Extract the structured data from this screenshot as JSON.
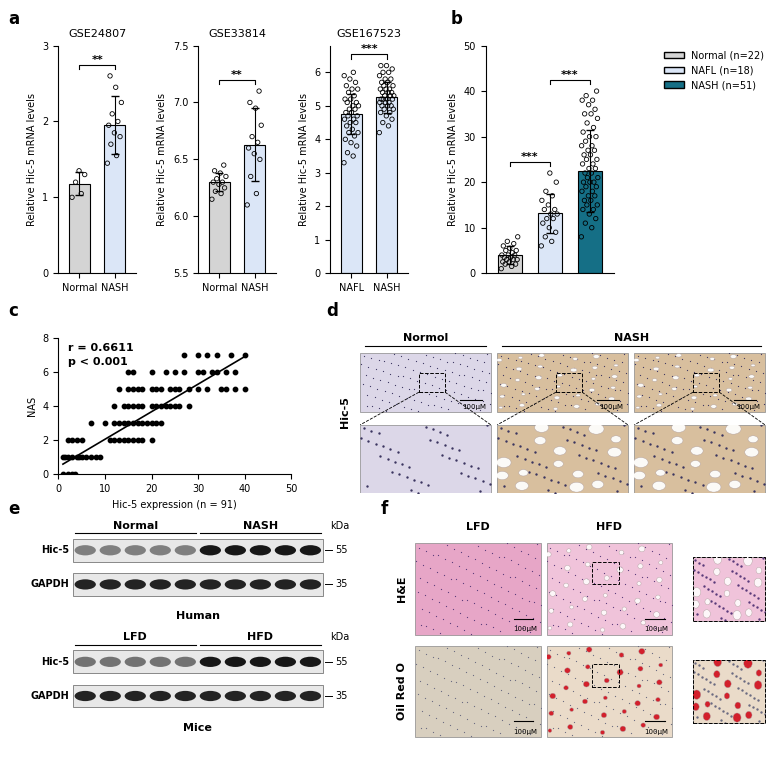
{
  "panel_labels": [
    "a",
    "b",
    "c",
    "d",
    "e",
    "f"
  ],
  "chart_data": [
    {
      "type": "bar",
      "title": "GSE24807",
      "y_label": "Relative Hic-5 mRNA levels",
      "categories": [
        "Normal",
        "NASH"
      ],
      "values": [
        1.18,
        1.95
      ],
      "errors": [
        0.15,
        0.38
      ],
      "points": [
        [
          1.0,
          1.05,
          1.2,
          1.3,
          1.35
        ],
        [
          1.45,
          1.55,
          1.7,
          1.8,
          1.85,
          1.95,
          2.0,
          2.1,
          2.25,
          2.45,
          2.6
        ]
      ],
      "colors": [
        "#d4d4d4",
        "#dbe6f7"
      ],
      "ylim": [
        0,
        3
      ],
      "yticks": [
        0,
        1,
        2,
        3
      ],
      "comparisons": [
        {
          "groups": [
            "Normal",
            "NASH"
          ],
          "label": "**"
        }
      ]
    },
    {
      "type": "bar",
      "title": "GSE33814",
      "y_label": "Relative Hic-5 mRNA levels",
      "categories": [
        "Normal",
        "NASH"
      ],
      "values": [
        6.3,
        6.63
      ],
      "errors": [
        0.08,
        0.32
      ],
      "points": [
        [
          6.15,
          6.2,
          6.22,
          6.25,
          6.28,
          6.3,
          6.3,
          6.33,
          6.35,
          6.38,
          6.4,
          6.45
        ],
        [
          6.1,
          6.2,
          6.35,
          6.5,
          6.55,
          6.6,
          6.65,
          6.7,
          6.8,
          6.95,
          7.0,
          7.1
        ]
      ],
      "colors": [
        "#d4d4d4",
        "#dbe6f7"
      ],
      "ylim": [
        5.5,
        7.5
      ],
      "yticks": [
        5.5,
        {
          "value": 6,
          "label": "6.0"
        },
        6.5,
        {
          "value": 7,
          "label": "7.0"
        },
        7.5
      ],
      "comparisons": [
        {
          "groups": [
            "Normal",
            "NASH"
          ],
          "label": "**"
        }
      ]
    },
    {
      "type": "bar",
      "title": "GSE167523",
      "y_label": "Relative Hic-5 mRNA levels",
      "categories": [
        "NAFL",
        "NASH"
      ],
      "values": [
        4.75,
        5.25
      ],
      "errors": [
        0.6,
        0.45
      ],
      "points": [
        [
          3.3,
          3.5,
          3.6,
          3.8,
          3.9,
          4.0,
          4.1,
          4.2,
          4.2,
          4.3,
          4.4,
          4.5,
          4.5,
          4.6,
          4.6,
          4.7,
          4.7,
          4.8,
          4.8,
          4.9,
          4.9,
          5.0,
          5.0,
          5.1,
          5.1,
          5.2,
          5.2,
          5.3,
          5.4,
          5.5,
          5.5,
          5.6,
          5.7,
          5.8,
          5.9,
          6.0
        ],
        [
          4.2,
          4.4,
          4.5,
          4.6,
          4.7,
          4.8,
          4.8,
          4.9,
          4.9,
          5.0,
          5.0,
          5.0,
          5.1,
          5.1,
          5.1,
          5.2,
          5.2,
          5.2,
          5.2,
          5.3,
          5.3,
          5.3,
          5.4,
          5.4,
          5.4,
          5.5,
          5.5,
          5.5,
          5.6,
          5.6,
          5.7,
          5.7,
          5.8,
          5.8,
          5.9,
          6.0,
          6.0,
          6.1,
          6.2,
          6.2
        ]
      ],
      "colors": [
        "#dbe6f7",
        "#dbe6f7"
      ],
      "ylim": [
        0,
        6.8
      ],
      "yticks": [
        0,
        1,
        2,
        3,
        4,
        5,
        6
      ],
      "comparisons": [
        {
          "groups": [
            "NAFL",
            "NASH"
          ],
          "label": "***"
        }
      ]
    },
    {
      "type": "bar",
      "y_label": "Relative Hic-5 mRNA levels",
      "tick_labels": "y",
      "legend": "upper right",
      "series": [
        {
          "name": "Normal (n=22)",
          "color": "#d4d4d4",
          "values": [
            4.0
          ],
          "errors": [
            2.0
          ],
          "points": [
            1,
            1.5,
            2,
            2,
            2.5,
            2.5,
            3,
            3,
            3,
            3.5,
            3.5,
            4,
            4,
            4,
            4.5,
            5,
            5,
            5.5,
            6,
            6.5,
            7,
            8
          ]
        },
        {
          "name": "NAFL (n=18)",
          "color": "#dbe6f7",
          "values": [
            13.2
          ],
          "errors": [
            4.3
          ],
          "points": [
            6,
            7,
            8,
            9,
            10,
            11,
            12,
            12,
            13,
            13,
            14,
            14,
            15,
            16,
            17,
            18,
            20,
            22
          ]
        },
        {
          "name": "NASH (n=51)",
          "color": "#156f86",
          "values": [
            22.5
          ],
          "errors": [
            9.0
          ],
          "points": [
            8,
            10,
            11,
            12,
            13,
            14,
            14,
            15,
            15,
            16,
            16,
            17,
            17,
            18,
            18,
            19,
            19,
            20,
            20,
            20,
            21,
            21,
            22,
            22,
            23,
            23,
            24,
            24,
            25,
            25,
            26,
            26,
            27,
            27,
            28,
            28,
            29,
            30,
            30,
            31,
            32,
            33,
            34,
            35,
            35,
            36,
            37,
            38,
            38,
            39,
            40
          ]
        }
      ],
      "ylim": [
        0,
        50
      ],
      "yticks": [
        0,
        10,
        20,
        30,
        40,
        50
      ],
      "comparisons": [
        {
          "groups": [
            "Normal (n=22)",
            "NAFL (n=18)"
          ],
          "label": "***"
        },
        {
          "groups": [
            "NAFL (n=18)",
            "NASH (n=51)"
          ],
          "label": "***"
        }
      ]
    },
    {
      "type": "scatter",
      "x_label": "Hic-5 expression (n = 91)",
      "y_label": "NAS",
      "color": "#000000",
      "x": [
        1,
        2,
        3,
        3.5,
        1,
        1.5,
        2,
        3,
        4,
        4.5,
        5,
        6,
        7,
        8,
        9,
        2,
        3,
        4,
        5,
        11,
        12,
        13,
        14,
        15,
        16,
        17,
        18,
        20,
        7,
        10,
        12,
        13,
        14,
        15,
        16,
        17,
        18,
        19,
        20,
        21,
        22,
        12,
        14,
        15,
        16,
        17,
        18,
        20,
        21,
        22,
        23,
        24,
        25,
        26,
        28,
        13,
        15,
        16,
        17,
        18,
        20,
        21,
        22,
        24,
        25,
        26,
        28,
        30,
        32,
        35,
        36,
        38,
        40,
        15,
        16,
        20,
        23,
        25,
        27,
        30,
        31,
        33,
        34,
        36,
        38,
        27,
        30,
        32,
        34,
        37,
        40
      ],
      "values": [
        0,
        0,
        0,
        0,
        1,
        1,
        1,
        1,
        1,
        1,
        1,
        1,
        1,
        1,
        1,
        2,
        2,
        2,
        2,
        2,
        2,
        2,
        2,
        2,
        2,
        2,
        2,
        2,
        3,
        3,
        3,
        3,
        3,
        3,
        3,
        3,
        3,
        3,
        3,
        3,
        3,
        4,
        4,
        4,
        4,
        4,
        4,
        4,
        4,
        4,
        4,
        4,
        4,
        4,
        4,
        5,
        5,
        5,
        5,
        5,
        5,
        5,
        5,
        5,
        5,
        5,
        5,
        5,
        5,
        5,
        5,
        5,
        5,
        6,
        6,
        6,
        6,
        6,
        6,
        6,
        6,
        6,
        6,
        6,
        6,
        7,
        7,
        7,
        7,
        7,
        7
      ],
      "fit": {
        "x": [
          1,
          40
        ],
        "values": [
          0.6,
          6.9
        ]
      },
      "annotations": [
        "r = 0.6611",
        "p < 0.001"
      ],
      "xlim": [
        0,
        50
      ],
      "xticks": [
        0,
        10,
        20,
        30,
        40,
        50
      ],
      "ylim": [
        0,
        8
      ],
      "yticks": [
        0,
        2,
        4,
        6,
        8
      ]
    }
  ],
  "ihc": {
    "row_label": "Hic-5",
    "scale_bar": "100μM",
    "groups": [
      {
        "label": "Normol",
        "images": 1
      },
      {
        "label": "NASH",
        "images": 2
      }
    ]
  },
  "blots": [
    {
      "groups": [
        "Normal",
        "NASH"
      ],
      "lanes_per_group": 5,
      "species": "Human",
      "unit": "kDa",
      "rows": [
        {
          "name": "Hic-5",
          "kda": 55,
          "intensity": [
            0.45,
            0.9
          ]
        },
        {
          "name": "GAPDH",
          "kda": 35,
          "intensity": [
            0.85,
            0.85
          ]
        }
      ]
    },
    {
      "groups": [
        "LFD",
        "HFD"
      ],
      "lanes_per_group": 5,
      "species": "Mice",
      "unit": "kDa",
      "rows": [
        {
          "name": "Hic-5",
          "kda": 55,
          "intensity": [
            0.5,
            0.9
          ]
        },
        {
          "name": "GAPDH",
          "kda": 35,
          "intensity": [
            0.85,
            0.85
          ]
        }
      ]
    }
  ],
  "histology": {
    "columns": [
      "LFD",
      "HFD"
    ],
    "rows": [
      "H&E",
      "Oil Red O"
    ],
    "scale_bar": "100μM"
  }
}
